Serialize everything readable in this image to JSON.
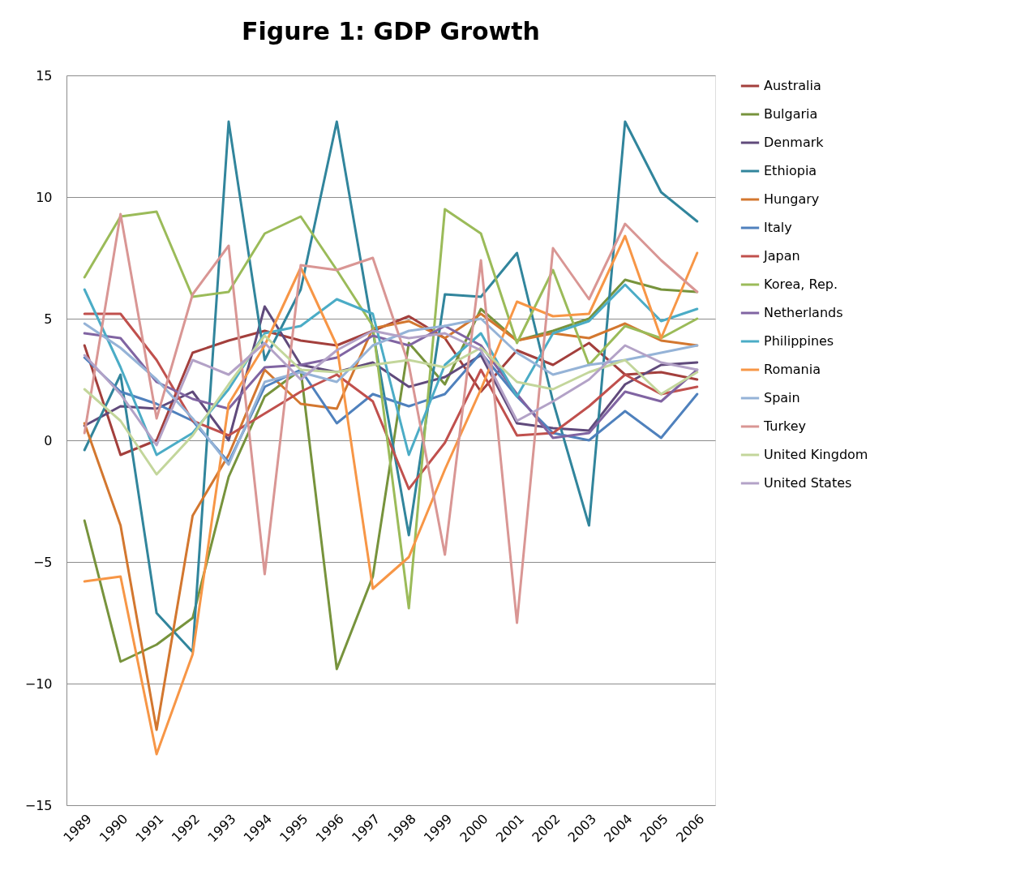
{
  "chart_data": {
    "type": "line",
    "title": "Figure 1: GDP Growth",
    "categories": [
      "1989",
      "1990",
      "1991",
      "1992",
      "1993",
      "1994",
      "1995",
      "1996",
      "1997",
      "1998",
      "1999",
      "2000",
      "2001",
      "2002",
      "2003",
      "2004",
      "2005",
      "2006"
    ],
    "series": [
      {
        "name": "Australia",
        "color": "#a33f3c",
        "values": [
          3.9,
          -0.6,
          0.0,
          3.6,
          4.1,
          4.5,
          4.1,
          3.9,
          4.5,
          5.1,
          4.2,
          2.0,
          3.7,
          3.1,
          4.0,
          2.7,
          2.8,
          2.5
        ]
      },
      {
        "name": "Bulgaria",
        "color": "#77933c",
        "values": [
          -3.3,
          -9.1,
          -8.4,
          -7.3,
          -1.5,
          1.8,
          2.9,
          -9.4,
          -5.6,
          4.0,
          2.3,
          5.4,
          4.1,
          4.5,
          5.0,
          6.6,
          6.2,
          6.1
        ]
      },
      {
        "name": "Denmark",
        "color": "#604a7b",
        "values": [
          0.6,
          1.4,
          1.3,
          2.0,
          0.0,
          5.5,
          3.1,
          2.8,
          3.2,
          2.2,
          2.6,
          3.5,
          0.7,
          0.5,
          0.4,
          2.3,
          3.1,
          3.2
        ]
      },
      {
        "name": "Ethiopia",
        "color": "#31859c",
        "values": [
          -0.4,
          2.7,
          -7.1,
          -8.7,
          13.1,
          3.3,
          6.2,
          13.1,
          4.5,
          -3.9,
          6.0,
          5.9,
          7.7,
          1.6,
          -3.5,
          13.1,
          10.2,
          9.0
        ]
      },
      {
        "name": "Hungary",
        "color": "#d3772f",
        "values": [
          0.7,
          -3.5,
          -11.9,
          -3.1,
          -0.6,
          2.9,
          1.5,
          1.3,
          4.6,
          4.9,
          4.2,
          5.2,
          4.1,
          4.4,
          4.2,
          4.8,
          4.1,
          3.9
        ]
      },
      {
        "name": "Italy",
        "color": "#4f81bd",
        "values": [
          3.4,
          2.0,
          1.5,
          0.8,
          -0.9,
          2.2,
          2.9,
          0.7,
          1.9,
          1.4,
          1.9,
          3.6,
          1.8,
          0.3,
          0.0,
          1.2,
          0.1,
          1.9
        ]
      },
      {
        "name": "Japan",
        "color": "#c0504d",
        "values": [
          5.2,
          5.2,
          3.3,
          0.8,
          0.2,
          1.1,
          2.0,
          2.7,
          1.6,
          -2.0,
          -0.1,
          2.9,
          0.2,
          0.3,
          1.4,
          2.7,
          1.9,
          2.2
        ]
      },
      {
        "name": "Korea, Rep.",
        "color": "#9bbb59",
        "values": [
          6.7,
          9.2,
          9.4,
          5.9,
          6.1,
          8.5,
          9.2,
          7.0,
          4.7,
          -6.9,
          9.5,
          8.5,
          4.0,
          7.0,
          3.1,
          4.7,
          4.2,
          5.0
        ]
      },
      {
        "name": "Netherlands",
        "color": "#8064a2",
        "values": [
          4.4,
          4.2,
          2.4,
          1.7,
          1.3,
          3.0,
          3.1,
          3.4,
          4.3,
          3.9,
          4.7,
          3.9,
          1.9,
          0.1,
          0.3,
          2.0,
          1.6,
          2.9
        ]
      },
      {
        "name": "Philippines",
        "color": "#4bacc6",
        "values": [
          6.2,
          3.0,
          -0.6,
          0.3,
          2.1,
          4.4,
          4.7,
          5.8,
          5.2,
          -0.6,
          3.1,
          4.4,
          1.8,
          4.4,
          4.9,
          6.4,
          4.9,
          5.4
        ]
      },
      {
        "name": "Romania",
        "color": "#f79646",
        "values": [
          -5.8,
          -5.6,
          -12.9,
          -8.8,
          1.5,
          3.9,
          7.1,
          3.9,
          -6.1,
          -4.8,
          -1.2,
          2.1,
          5.7,
          5.1,
          5.2,
          8.4,
          4.2,
          7.7
        ]
      },
      {
        "name": "Spain",
        "color": "#95b3d7",
        "values": [
          4.8,
          3.8,
          2.5,
          0.9,
          -1.0,
          2.4,
          2.8,
          2.4,
          3.9,
          4.5,
          4.7,
          5.0,
          3.6,
          2.7,
          3.1,
          3.3,
          3.6,
          3.9
        ]
      },
      {
        "name": "Turkey",
        "color": "#d99694",
        "values": [
          0.3,
          9.3,
          0.9,
          6.0,
          8.0,
          -5.5,
          7.2,
          7.0,
          7.5,
          3.1,
          -4.7,
          7.4,
          -7.5,
          7.9,
          5.8,
          8.9,
          7.4,
          6.1
        ]
      },
      {
        "name": "United Kingdom",
        "color": "#c3d69b",
        "values": [
          2.1,
          0.8,
          -1.4,
          0.2,
          2.3,
          4.3,
          2.9,
          2.8,
          3.1,
          3.3,
          3.0,
          3.8,
          2.4,
          2.1,
          2.8,
          3.3,
          1.9,
          2.8
        ]
      },
      {
        "name": "United States",
        "color": "#b3a2c7",
        "values": [
          3.5,
          1.9,
          -0.2,
          3.3,
          2.7,
          4.0,
          2.5,
          3.7,
          4.5,
          4.2,
          4.4,
          3.7,
          0.8,
          1.6,
          2.5,
          3.9,
          3.2,
          2.9
        ]
      }
    ],
    "ylim": [
      -15,
      15
    ],
    "yticks": [
      -15,
      -10,
      -5,
      0,
      5,
      10,
      15
    ],
    "grid": "y",
    "legend": "right",
    "marker": "none",
    "line_style": "solid"
  }
}
